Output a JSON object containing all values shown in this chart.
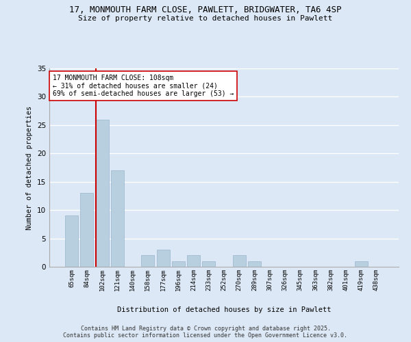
{
  "title_line1": "17, MONMOUTH FARM CLOSE, PAWLETT, BRIDGWATER, TA6 4SP",
  "title_line2": "Size of property relative to detached houses in Pawlett",
  "xlabel": "Distribution of detached houses by size in Pawlett",
  "ylabel": "Number of detached properties",
  "categories": [
    "65sqm",
    "84sqm",
    "102sqm",
    "121sqm",
    "140sqm",
    "158sqm",
    "177sqm",
    "196sqm",
    "214sqm",
    "233sqm",
    "252sqm",
    "270sqm",
    "289sqm",
    "307sqm",
    "326sqm",
    "345sqm",
    "363sqm",
    "382sqm",
    "401sqm",
    "419sqm",
    "438sqm"
  ],
  "values": [
    9,
    13,
    26,
    17,
    0,
    2,
    3,
    1,
    2,
    1,
    0,
    2,
    1,
    0,
    0,
    0,
    0,
    0,
    0,
    1,
    0
  ],
  "bar_color": "#b8cfe0",
  "bar_edge_color": "#9ab5cc",
  "vline_x_index": 2,
  "vline_color": "#cc0000",
  "ylim": [
    0,
    35
  ],
  "yticks": [
    0,
    5,
    10,
    15,
    20,
    25,
    30,
    35
  ],
  "annotation_text": "17 MONMOUTH FARM CLOSE: 108sqm\n← 31% of detached houses are smaller (24)\n69% of semi-detached houses are larger (53) →",
  "annotation_box_color": "#ffffff",
  "annotation_border_color": "#cc0000",
  "bg_color": "#dce8f5",
  "grid_color": "#ffffff",
  "footer_line1": "Contains HM Land Registry data © Crown copyright and database right 2025.",
  "footer_line2": "Contains public sector information licensed under the Open Government Licence v3.0."
}
